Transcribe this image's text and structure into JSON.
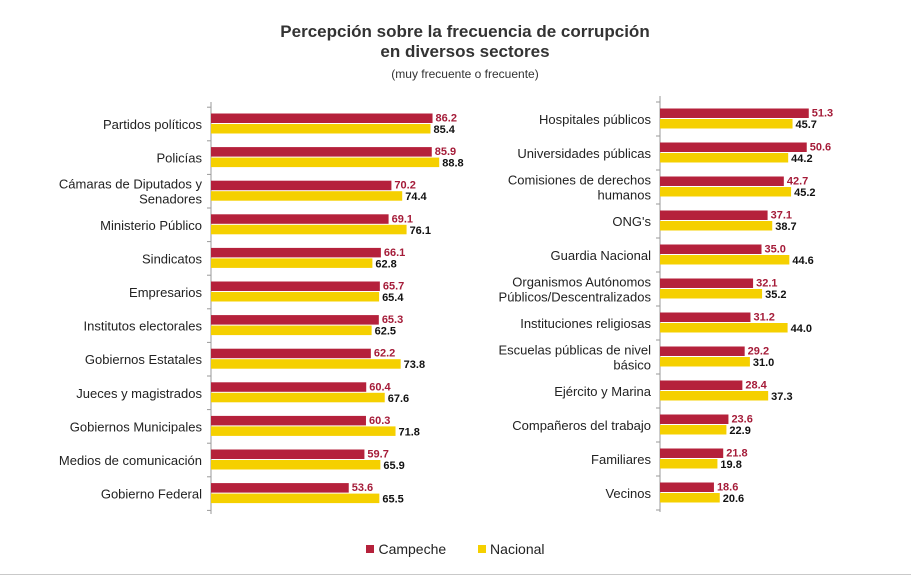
{
  "title_line1": "Percepción sobre la frecuencia de corrupción",
  "title_line2": "en diversos sectores",
  "subtitle": "(muy frecuente o frecuente)",
  "colors": {
    "campeche": "#b5213b",
    "nacional": "#f5d000"
  },
  "legend": {
    "campeche": "Campeche",
    "nacional": "Nacional"
  },
  "chart_data": [
    {
      "type": "bar",
      "orientation": "horizontal",
      "categories": [
        "Partidos políticos",
        "Policías",
        "Cámaras de Diputados y Senadores",
        "Ministerio Público",
        "Sindicatos",
        "Empresarios",
        "Institutos electorales",
        "Gobiernos Estatales",
        "Jueces y magistrados",
        "Gobiernos Municipales",
        "Medios de comunicación",
        "Gobierno Federal"
      ],
      "category_lines": [
        [
          "Partidos políticos"
        ],
        [
          "Policías"
        ],
        [
          "Cámaras de Diputados y",
          "Senadores"
        ],
        [
          "Ministerio Público"
        ],
        [
          "Sindicatos"
        ],
        [
          "Empresarios"
        ],
        [
          "Institutos electorales"
        ],
        [
          "Gobiernos Estatales"
        ],
        [
          "Jueces y magistrados"
        ],
        [
          "Gobiernos Municipales"
        ],
        [
          "Medios de comunicación"
        ],
        [
          "Gobierno Federal"
        ]
      ],
      "series": [
        {
          "name": "Campeche",
          "values": [
            86.2,
            85.9,
            70.2,
            69.1,
            66.1,
            65.7,
            65.3,
            62.2,
            60.4,
            60.3,
            59.7,
            53.6
          ]
        },
        {
          "name": "Nacional",
          "values": [
            85.4,
            88.8,
            74.4,
            76.1,
            62.8,
            65.4,
            62.5,
            73.8,
            67.6,
            71.8,
            65.9,
            65.5
          ]
        }
      ],
      "labels": {
        "Campeche": [
          "86.2",
          "85.9",
          "70.2",
          "69.1",
          "66.1",
          "65.7",
          "65.3",
          "62.2",
          "60.4",
          "60.3",
          "59.7",
          "53.6"
        ],
        "Nacional": [
          "85.4",
          "88.8",
          "74.4",
          "76.1",
          "62.8",
          "65.4",
          "62.5",
          "73.8",
          "67.6",
          "71.8",
          "65.9",
          "65.5"
        ]
      },
      "xlim": [
        0,
        100
      ]
    },
    {
      "type": "bar",
      "orientation": "horizontal",
      "categories": [
        "Hospitales públicos",
        "Universidades públicas",
        "Comisiones de derechos humanos",
        "ONG's",
        "Guardia Nacional",
        "Organismos Autónomos Públicos/Descentralizados",
        "Instituciones religiosas",
        "Escuelas públicas de nivel básico",
        "Ejército y Marina",
        "Compañeros del trabajo",
        "Familiares",
        "Vecinos"
      ],
      "category_lines": [
        [
          "Hospitales públicos"
        ],
        [
          "Universidades públicas"
        ],
        [
          "Comisiones de derechos",
          "humanos"
        ],
        [
          "ONG's"
        ],
        [
          "Guardia Nacional"
        ],
        [
          "Organismos Autónomos",
          "Públicos/Descentralizados"
        ],
        [
          "Instituciones religiosas"
        ],
        [
          "Escuelas públicas de nivel",
          "básico"
        ],
        [
          "Ejército y Marina"
        ],
        [
          "Compañeros del trabajo"
        ],
        [
          "Familiares"
        ],
        [
          "Vecinos"
        ]
      ],
      "series": [
        {
          "name": "Campeche",
          "values": [
            51.3,
            50.6,
            42.7,
            37.1,
            35.0,
            32.1,
            31.2,
            29.2,
            28.4,
            23.6,
            21.8,
            18.6
          ]
        },
        {
          "name": "Nacional",
          "values": [
            45.7,
            44.2,
            45.2,
            38.7,
            44.6,
            35.2,
            44.0,
            31.0,
            37.3,
            22.9,
            19.8,
            20.6
          ]
        }
      ],
      "labels": {
        "Campeche": [
          "51.3",
          "50.6",
          "42.7",
          "37.1",
          "35.0",
          "32.1",
          "31.2",
          "29.2",
          "28.4",
          "23.6",
          "21.8",
          "18.6"
        ],
        "Nacional": [
          "45.7",
          "44.2",
          "45.2",
          "38.7",
          "44.6",
          "35.2",
          "44.0",
          "31.0",
          "37.3",
          "22.9",
          "19.8",
          "20.6"
        ]
      },
      "xlim": [
        0,
        100
      ]
    }
  ]
}
